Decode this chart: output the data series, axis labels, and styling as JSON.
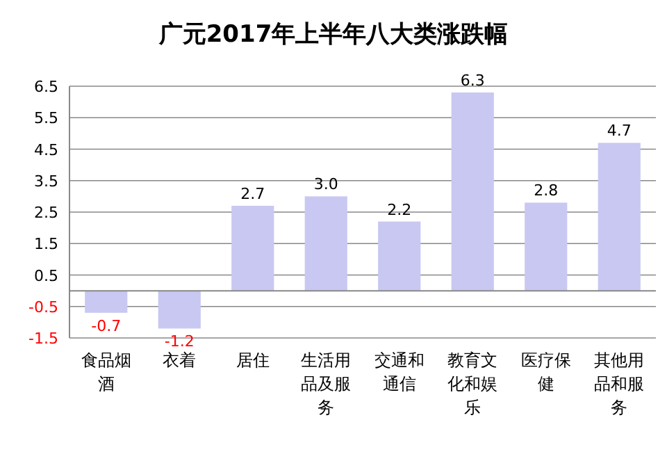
{
  "chart_data": {
    "type": "bar",
    "title": "广元2017年上半年八大类涨跌幅",
    "categories": [
      "食品烟酒",
      "衣着",
      "居住",
      "生活用品及服务",
      "交通和通信",
      "教育文化和娱乐",
      "医疗保健",
      "其他用品和服务"
    ],
    "values": [
      -0.7,
      -1.2,
      2.7,
      3.0,
      2.2,
      6.3,
      2.8,
      4.7
    ],
    "value_labels": [
      "-0.7",
      "-1.2",
      "2.7",
      "3.0",
      "2.2",
      "6.3",
      "2.8",
      "4.7"
    ],
    "color": "#c8c8f2",
    "ylim": [
      -1.5,
      6.5
    ],
    "yticks": [
      6.5,
      5.5,
      4.5,
      3.5,
      2.5,
      1.5,
      0.5,
      -0.5,
      -1.5
    ],
    "grid": "y"
  }
}
